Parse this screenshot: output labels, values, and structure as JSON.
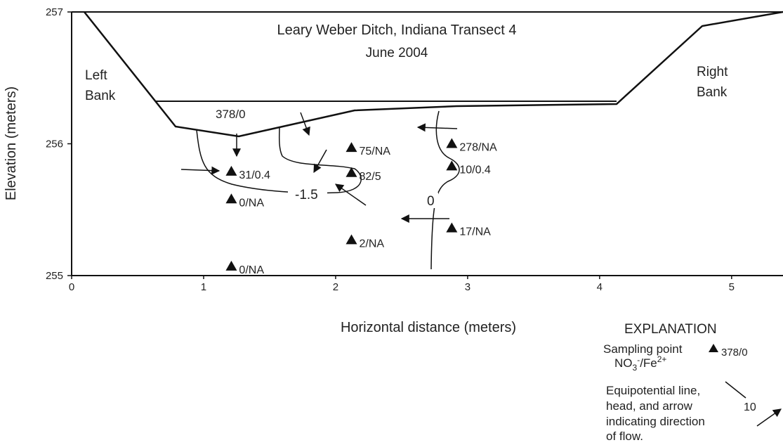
{
  "chart_data": {
    "type": "scatter",
    "title": "Leary Weber Ditch, Indiana Transect 4",
    "subtitle": "June 2004",
    "x_label": "Horizontal distance (meters)",
    "y_label": "Elevation (meters)",
    "xlim": [
      0,
      5.4
    ],
    "xticks": [
      0,
      1,
      2,
      3,
      4,
      5
    ],
    "ylim": [
      255,
      257
    ],
    "yticks": [
      255,
      256,
      257
    ],
    "color": "#111111",
    "x": [
      1.21,
      1.21,
      1.21,
      2.12,
      2.12,
      2.12,
      2.88,
      2.88,
      2.88
    ],
    "values": [
      255.79,
      255.58,
      255.07,
      255.97,
      255.78,
      255.27,
      256.0,
      255.83,
      255.36
    ],
    "labels": [
      "31/0.4",
      "0/NA",
      "0/NA",
      "75/NA",
      "82/5",
      "2/NA",
      "278/NA",
      "10/0.4",
      "17/NA"
    ],
    "annotations": {
      "left_bank": [
        "Left",
        "Bank"
      ],
      "right_bank": [
        "Right",
        "Bank"
      ],
      "surface_point": "378/0",
      "contour_low": "-1.5",
      "contour_zero": "0"
    },
    "legend": {
      "title": "EXPLANATION",
      "sampling": "Sampling point",
      "sample_label": "378/0",
      "chem": [
        "NO",
        "3",
        "-",
        "/Fe",
        "2+"
      ],
      "equipotential": [
        "Equipotential line,",
        "head, and arrow",
        "indicating direction",
        "of flow."
      ],
      "head": "10"
    }
  }
}
